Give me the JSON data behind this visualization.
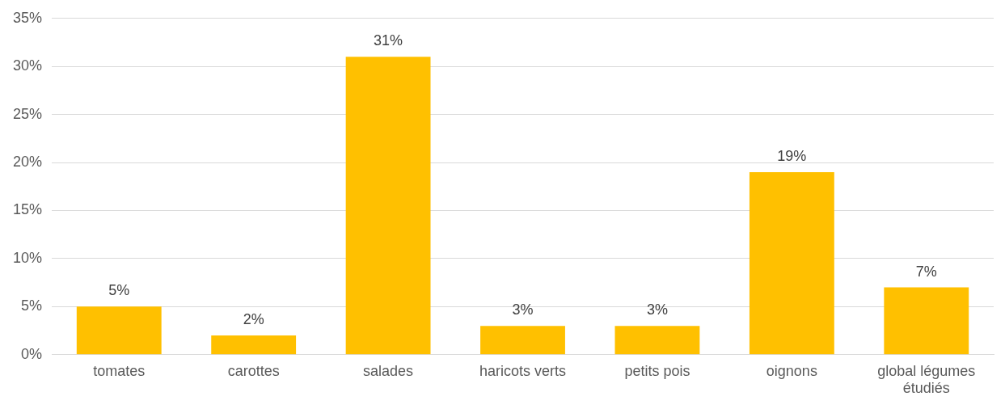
{
  "chart_data": {
    "type": "bar",
    "categories": [
      "tomates",
      "carottes",
      "salades",
      "haricots verts",
      "petits pois",
      "oignons",
      "global légumes étudiés"
    ],
    "values": [
      5,
      2,
      31,
      3,
      3,
      19,
      7
    ],
    "value_labels": [
      "5%",
      "2%",
      "31%",
      "3%",
      "3%",
      "19%",
      "7%"
    ],
    "color": "#ffc000",
    "ylim": [
      0,
      35
    ],
    "yticks": [
      {
        "value": 0,
        "label": "0%"
      },
      {
        "value": 5,
        "label": "5%"
      },
      {
        "value": 10,
        "label": "10%"
      },
      {
        "value": 15,
        "label": "15%"
      },
      {
        "value": 20,
        "label": "20%"
      },
      {
        "value": 25,
        "label": "25%"
      },
      {
        "value": 30,
        "label": "30%"
      },
      {
        "value": 35,
        "label": "35%"
      }
    ],
    "grid": "y",
    "legend": false
  }
}
